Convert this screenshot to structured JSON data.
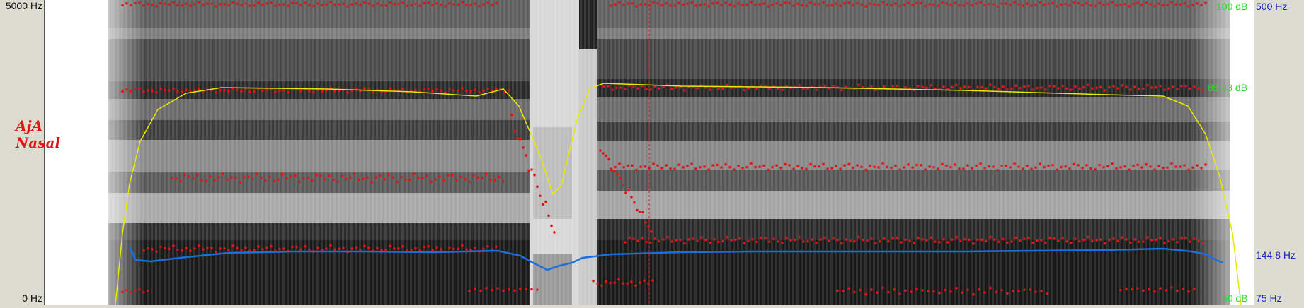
{
  "axis": {
    "freq_top": "5000 Hz",
    "freq_bottom": "0 Hz",
    "intensity_top": "100 dB",
    "intensity_mark": "85.43 dB",
    "intensity_bottom": "50 dB",
    "pitch_top": "500 Hz",
    "pitch_mark": "144.8 Hz",
    "pitch_bottom": "75 Hz"
  },
  "tier": {
    "line1": "AjA",
    "line2": "Nasal"
  },
  "colors": {
    "background": "#dcdcd0",
    "formant": "#e01616",
    "intensity": "#e8e800",
    "pitch": "#1a6fe0",
    "cursor": "#c02020",
    "axis_db": "#22dd22",
    "axis_hz": "#1a24c8"
  }
}
